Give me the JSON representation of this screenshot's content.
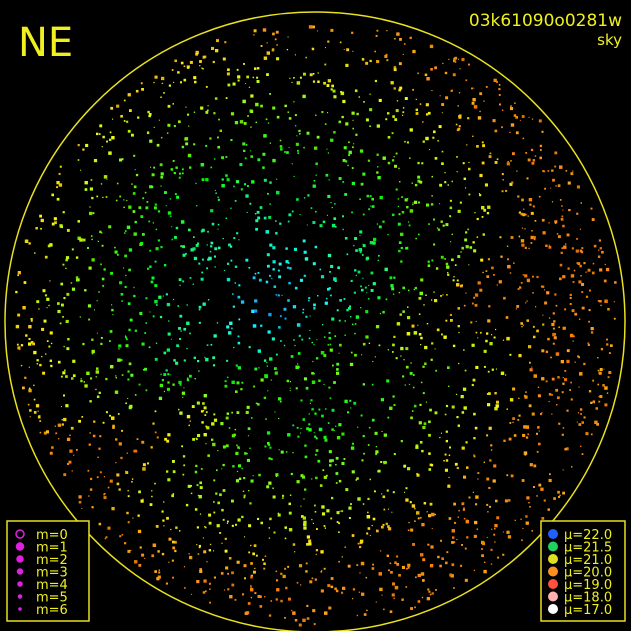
{
  "corner_label": "NE",
  "image_id": "03k61090o0281w",
  "image_type": "sky",
  "magnitude_legend": [
    {
      "label": "m=0",
      "color": "#e020e0",
      "filled": false
    },
    {
      "label": "m=1",
      "color": "#e020e0",
      "filled": true
    },
    {
      "label": "m=2",
      "color": "#e020e0",
      "filled": true
    },
    {
      "label": "m=3",
      "color": "#e020e0",
      "filled": true
    },
    {
      "label": "m=4",
      "color": "#e020e0",
      "filled": true
    },
    {
      "label": "m=5",
      "color": "#e020e0",
      "filled": true
    },
    {
      "label": "m=6",
      "color": "#e020e0",
      "filled": true
    }
  ],
  "sky_brightness_legend": [
    {
      "label": "μ=22.0",
      "color": "#2060ff"
    },
    {
      "label": "μ=21.5",
      "color": "#20d060"
    },
    {
      "label": "μ=21.0",
      "color": "#e0e020"
    },
    {
      "label": "μ=20.0",
      "color": "#ff9020"
    },
    {
      "label": "μ=19.0",
      "color": "#ff5040"
    },
    {
      "label": "μ=18.0",
      "color": "#ffb0b0"
    },
    {
      "label": "μ=17.0",
      "color": "#ffffff"
    }
  ]
}
